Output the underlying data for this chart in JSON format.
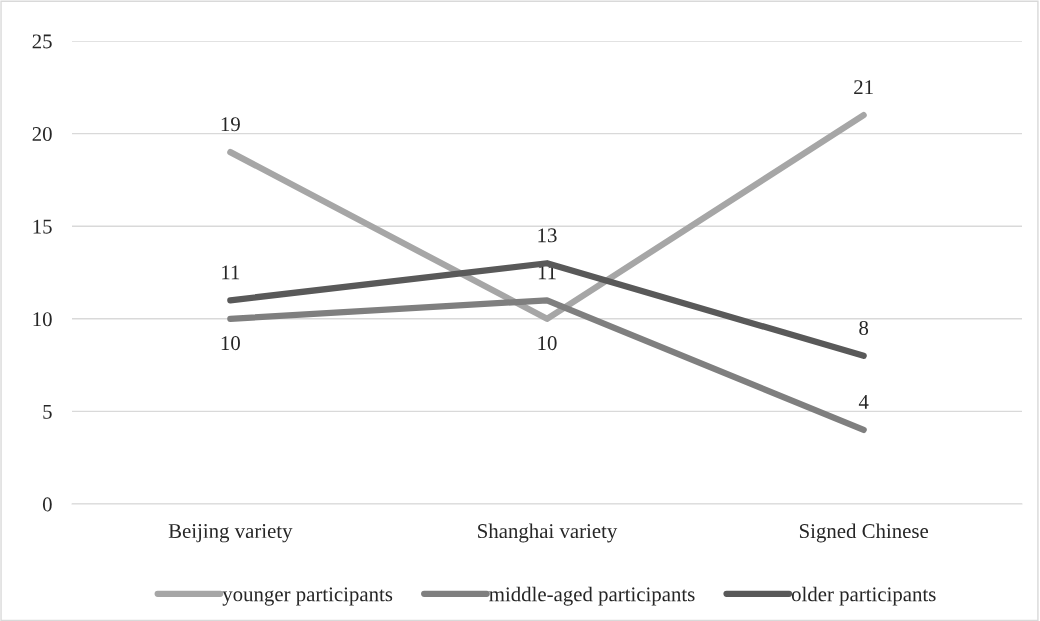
{
  "chart_data": {
    "type": "line",
    "categories": [
      "Beijing variety",
      "Shanghai variety",
      "Signed Chinese"
    ],
    "series": [
      {
        "name": "younger participants",
        "color": "#a6a6a6",
        "values": [
          19,
          10,
          21
        ]
      },
      {
        "name": "middle-aged participants",
        "color": "#7f7f7f",
        "values": [
          10,
          11,
          4
        ]
      },
      {
        "name": "older participants",
        "color": "#595959",
        "values": [
          11,
          13,
          8
        ]
      }
    ],
    "ylim": [
      0,
      25
    ],
    "yticks": [
      0,
      5,
      10,
      15,
      20,
      25
    ],
    "grid": "y",
    "legend": "bottom",
    "data_labels": true,
    "marker": "none",
    "line_style": "solid"
  }
}
